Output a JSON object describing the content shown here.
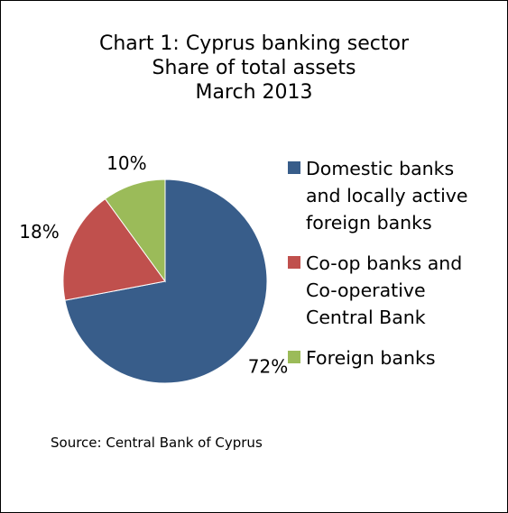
{
  "chart_data": {
    "type": "pie",
    "title_lines": [
      "Chart 1: Cyprus banking sector",
      "Share of total assets",
      "March 2013"
    ],
    "categories": [
      "Domestic banks and locally active foreign banks",
      "Co-op banks and Co-operative Central Bank",
      "Foreign banks"
    ],
    "values": [
      72,
      18,
      10
    ],
    "value_labels": [
      "72%",
      "18%",
      "10%"
    ],
    "colors": [
      "#385D8A",
      "#C0504D",
      "#9BBB59"
    ],
    "legend_position": "right",
    "legend": [
      {
        "lines": [
          "Domestic banks",
          "and locally active",
          "foreign banks"
        ],
        "color": "#385D8A"
      },
      {
        "lines": [
          "Co-op banks and",
          "Co-operative",
          "Central Bank"
        ],
        "color": "#C0504D"
      },
      {
        "lines": [
          "Foreign banks"
        ],
        "color": "#9BBB59"
      }
    ],
    "source": "Source: Central Bank of Cyprus"
  }
}
